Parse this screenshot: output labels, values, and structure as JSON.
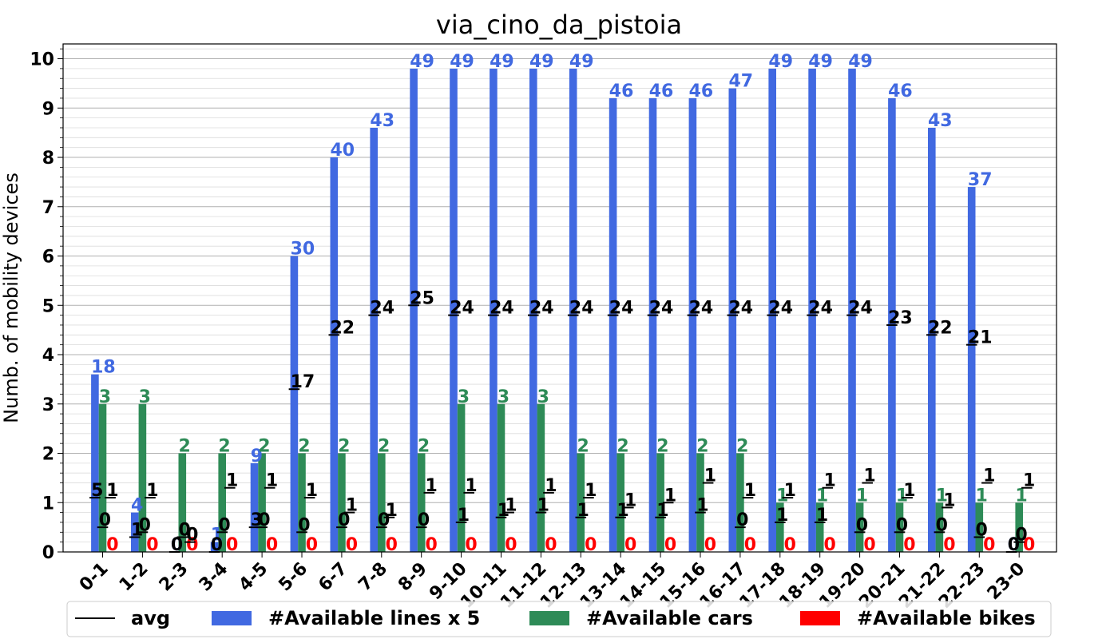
{
  "chart_data": {
    "type": "bar",
    "title": "via_cino_da_pistoia",
    "xlabel": "",
    "ylabel": "Numb. of mobility devices",
    "ylim": [
      0,
      10.3
    ],
    "yticks": [
      "0",
      "1",
      "2",
      "3",
      "4",
      "5",
      "6",
      "7",
      "8",
      "9",
      "10"
    ],
    "grid": true,
    "legend_position": "bottom",
    "categories": [
      "0-1",
      "1-2",
      "2-3",
      "3-4",
      "4-5",
      "5-6",
      "6-7",
      "7-8",
      "8-9",
      "9-10",
      "10-11",
      "11-12",
      "12-13",
      "13-14",
      "14-15",
      "15-16",
      "16-17",
      "17-18",
      "18-19",
      "19-20",
      "20-21",
      "21-22",
      "22-23",
      "23-0"
    ],
    "series": [
      {
        "name": "#Available lines x 5",
        "color": "#4169e1",
        "values": [
          3.6,
          0.8,
          0,
          0.2,
          1.8,
          6.0,
          8.0,
          8.6,
          9.8,
          9.8,
          9.8,
          9.8,
          9.8,
          9.2,
          9.2,
          9.2,
          9.4,
          9.8,
          9.8,
          9.8,
          9.2,
          8.6,
          7.4,
          0
        ],
        "labels": [
          "18",
          "4",
          "0",
          "1",
          "9",
          "30",
          "40",
          "43",
          "49",
          "49",
          "49",
          "49",
          "49",
          "46",
          "46",
          "46",
          "47",
          "49",
          "49",
          "49",
          "46",
          "43",
          "37",
          "0"
        ],
        "avg_values": [
          1.1,
          0.3,
          0.0,
          0.0,
          0.5,
          3.3,
          4.4,
          4.8,
          5.0,
          4.8,
          4.8,
          4.8,
          4.8,
          4.8,
          4.8,
          4.8,
          4.8,
          4.8,
          4.8,
          4.8,
          4.6,
          4.4,
          4.2,
          0.0
        ],
        "avg_labels": [
          "5",
          "1",
          "0",
          "0",
          "3",
          "17",
          "22",
          "24",
          "25",
          "24",
          "24",
          "24",
          "24",
          "24",
          "24",
          "24",
          "24",
          "24",
          "24",
          "24",
          "23",
          "22",
          "21",
          "0"
        ]
      },
      {
        "name": "#Available cars",
        "color": "#2e8b57",
        "values": [
          3,
          3,
          2,
          2,
          2,
          2,
          2,
          2,
          2,
          3,
          3,
          3,
          2,
          2,
          2,
          2,
          2,
          1,
          1,
          1,
          1,
          1,
          1,
          1
        ],
        "labels": [
          "3",
          "3",
          "2",
          "2",
          "2",
          "2",
          "2",
          "2",
          "2",
          "3",
          "3",
          "3",
          "2",
          "2",
          "2",
          "2",
          "2",
          "1",
          "1",
          "1",
          "1",
          "1",
          "1",
          "1"
        ],
        "avg_values": [
          0.5,
          0.4,
          0.3,
          0.4,
          0.5,
          0.4,
          0.5,
          0.5,
          0.5,
          0.6,
          0.7,
          0.8,
          0.7,
          0.7,
          0.7,
          0.8,
          0.5,
          0.6,
          0.6,
          0.4,
          0.4,
          0.4,
          0.3,
          0.2
        ],
        "avg_labels": [
          "0",
          "0",
          "0",
          "0",
          "0",
          "0",
          "0",
          "0",
          "0",
          "1",
          "1",
          "1",
          "1",
          "1",
          "1",
          "1",
          "0",
          "1",
          "1",
          "0",
          "0",
          "0",
          "0",
          "0"
        ]
      },
      {
        "name": "#Available bikes",
        "color": "#ff0000",
        "values": [
          0,
          0,
          0,
          0,
          0,
          0,
          0,
          0,
          0,
          0,
          0,
          0,
          0,
          0,
          0,
          0,
          0,
          0,
          0,
          0,
          0,
          0,
          0,
          0
        ],
        "labels": [
          "0",
          "0",
          "0",
          "0",
          "0",
          "0",
          "0",
          "0",
          "0",
          "0",
          "0",
          "0",
          "0",
          "0",
          "0",
          "0",
          "0",
          "0",
          "0",
          "0",
          "0",
          "0",
          "0",
          "0"
        ],
        "avg_values": [
          1.1,
          1.1,
          0.2,
          1.3,
          1.3,
          1.1,
          0.8,
          0.7,
          1.2,
          1.2,
          0.8,
          1.2,
          1.1,
          0.9,
          1.0,
          1.4,
          1.1,
          1.1,
          1.3,
          1.4,
          1.1,
          0.9,
          1.4,
          1.3
        ],
        "avg_labels": [
          "1",
          "1",
          "0",
          "1",
          "1",
          "1",
          "1",
          "1",
          "1",
          "1",
          "1",
          "1",
          "1",
          "1",
          "1",
          "1",
          "1",
          "1",
          "1",
          "1",
          "1",
          "1",
          "1",
          "1"
        ]
      }
    ],
    "legend": [
      {
        "label": "avg",
        "kind": "line",
        "color": "#000000"
      },
      {
        "label": "#Available lines x 5",
        "kind": "patch",
        "color": "#4169e1"
      },
      {
        "label": "#Available cars",
        "kind": "patch",
        "color": "#2e8b57"
      },
      {
        "label": "#Available bikes",
        "kind": "patch",
        "color": "#ff0000"
      }
    ]
  }
}
